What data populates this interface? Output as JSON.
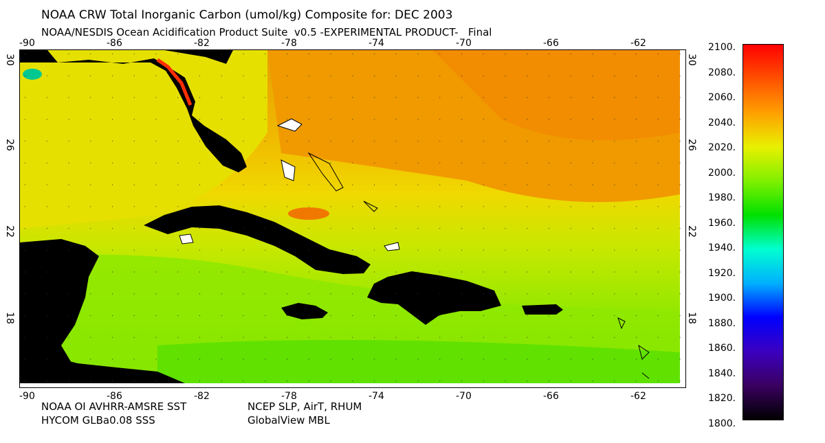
{
  "header": {
    "title": "NOAA CRW Total Inorganic Carbon (umol/kg) Composite for: DEC 2003",
    "subtitle": "NOAA/NESDIS Ocean Acidification Product Suite  v0.5 -EXPERIMENTAL PRODUCT-   Final"
  },
  "footer": {
    "sst_source": "NOAA OI AVHRR-AMSRE SST",
    "sss_source": "HYCOM GLBa0.08 SSS",
    "met_source": "NCEP SLP, AirT, RHUM",
    "co2_source": "GlobalView MBL"
  },
  "map": {
    "lon_ticks": [
      "-90",
      "-86",
      "-82",
      "-78",
      "-74",
      "-70",
      "-66",
      "-62"
    ],
    "lat_ticks": [
      "30",
      "26",
      "22",
      "18"
    ],
    "colors": {
      "land": "#000000",
      "coast_white": "#ffffff",
      "frame": "#000000"
    }
  },
  "colorbar": {
    "labels": [
      "2100.",
      "2080.",
      "2060.",
      "2040.",
      "2020.",
      "2000.",
      "1980.",
      "1960.",
      "1940.",
      "1920.",
      "1900.",
      "1880.",
      "1860.",
      "1840.",
      "1820.",
      "1800."
    ],
    "min": 1800,
    "max": 2100,
    "stops": [
      "#000000",
      "#3a0060",
      "#3b00c0",
      "#0000ff",
      "#00b0ff",
      "#00ffd0",
      "#00e000",
      "#80f000",
      "#e8f000",
      "#ffa000",
      "#ff5000",
      "#ff0000"
    ]
  }
}
